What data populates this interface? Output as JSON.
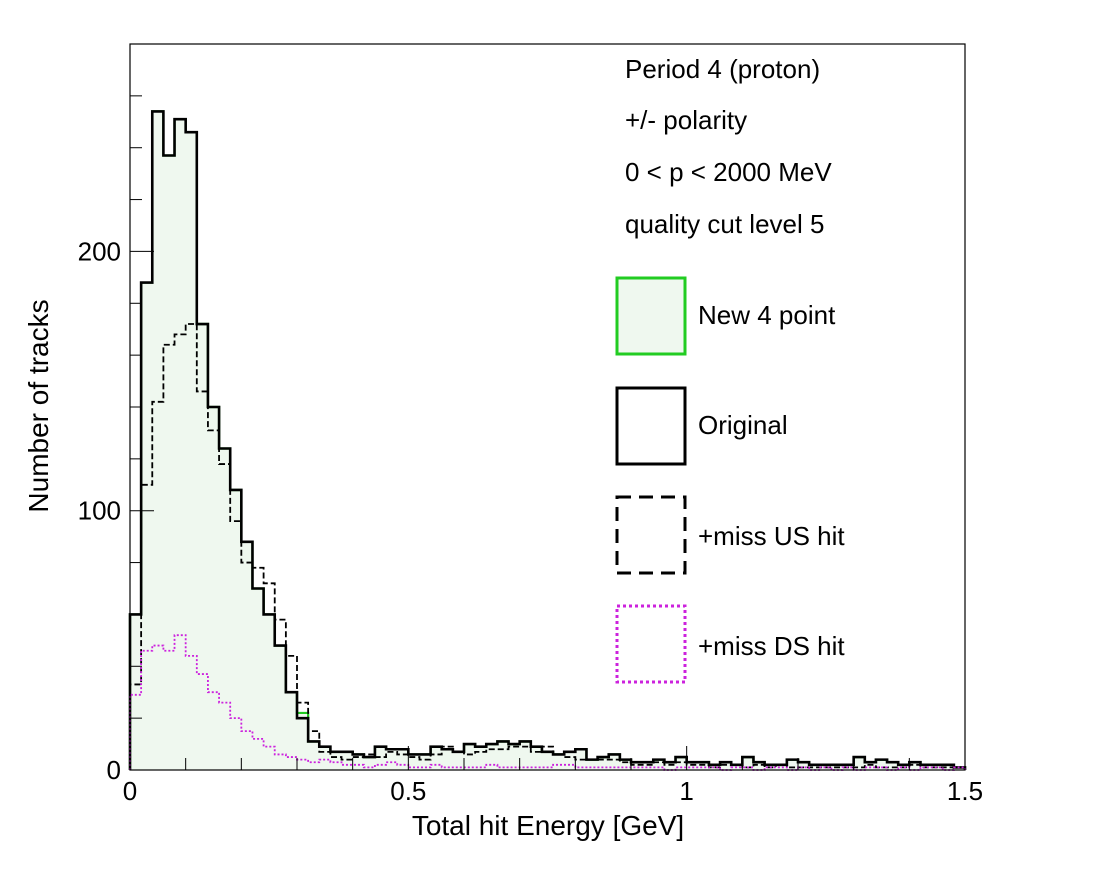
{
  "chart_data": {
    "type": "histogram",
    "xlabel": "Total hit Energy [GeV]",
    "ylabel": "Number of tracks",
    "xlim": [
      0,
      1.5
    ],
    "ylim": [
      0,
      280
    ],
    "x_ticks": [
      {
        "value": 0,
        "label": "0"
      },
      {
        "value": 0.5,
        "label": "0.5"
      },
      {
        "value": 1,
        "label": "1"
      },
      {
        "value": 1.5,
        "label": "1.5"
      }
    ],
    "y_ticks": [
      {
        "value": 0,
        "label": "0"
      },
      {
        "value": 100,
        "label": "100"
      },
      {
        "value": 200,
        "label": "200"
      }
    ],
    "grid": false,
    "legend_position": "right",
    "annotations": [
      "Period 4 (proton)",
      "+/- polarity",
      "0 < p < 2000 MeV",
      "quality cut level 5"
    ],
    "bin_edges": [
      0,
      0.02,
      0.04,
      0.06,
      0.08,
      0.1,
      0.12,
      0.14,
      0.16,
      0.18,
      0.2,
      0.22,
      0.24,
      0.26,
      0.28,
      0.3,
      0.32,
      0.34,
      0.36,
      0.38,
      0.4,
      0.42,
      0.44,
      0.46,
      0.48,
      0.5,
      0.52,
      0.54,
      0.56,
      0.58,
      0.6,
      0.62,
      0.64,
      0.66,
      0.68,
      0.7,
      0.72,
      0.74,
      0.76,
      0.78,
      0.8,
      0.82,
      0.84,
      0.86,
      0.88,
      0.9,
      0.92,
      0.94,
      0.96,
      0.98,
      1.0,
      1.02,
      1.04,
      1.06,
      1.08,
      1.1,
      1.12,
      1.14,
      1.16,
      1.18,
      1.2,
      1.22,
      1.24,
      1.26,
      1.28,
      1.3,
      1.32,
      1.34,
      1.36,
      1.38,
      1.4,
      1.42,
      1.44,
      1.46,
      1.48,
      1.5
    ],
    "series": [
      {
        "name": "New 4 point",
        "style": "filled",
        "color": "#22cc22",
        "fill": "#eff8ef",
        "values": [
          60,
          188,
          254,
          237,
          251,
          246,
          172,
          140,
          124,
          108,
          88,
          70,
          60,
          48,
          30,
          22,
          11,
          9,
          7,
          7,
          6,
          5,
          9,
          8,
          8,
          6,
          6,
          9,
          8,
          7,
          10,
          9,
          10,
          11,
          10,
          11,
          9,
          7,
          6,
          7,
          8,
          4,
          5,
          6,
          4,
          3,
          3,
          4,
          3,
          5,
          3,
          3,
          2,
          3,
          2,
          5,
          3,
          2,
          2,
          4,
          3,
          2,
          2,
          2,
          2,
          5,
          3,
          4,
          3,
          2,
          3,
          2,
          2,
          2,
          1
        ]
      },
      {
        "name": "Original",
        "style": "solid",
        "color": "#000000",
        "values": [
          60,
          188,
          254,
          237,
          251,
          246,
          172,
          140,
          124,
          108,
          88,
          70,
          60,
          48,
          30,
          20,
          11,
          9,
          7,
          7,
          6,
          5,
          9,
          8,
          8,
          6,
          6,
          9,
          8,
          7,
          10,
          9,
          10,
          11,
          10,
          11,
          9,
          7,
          6,
          7,
          8,
          4,
          5,
          6,
          4,
          3,
          3,
          4,
          3,
          5,
          3,
          3,
          2,
          3,
          2,
          5,
          3,
          2,
          2,
          4,
          3,
          2,
          2,
          2,
          2,
          5,
          3,
          4,
          3,
          2,
          3,
          2,
          2,
          2,
          1
        ]
      },
      {
        "name": "+miss US hit",
        "style": "dashed",
        "color": "#000000",
        "values": [
          33,
          110,
          142,
          164,
          168,
          172,
          146,
          131,
          118,
          96,
          80,
          78,
          72,
          58,
          44,
          26,
          15,
          7,
          5,
          4,
          5,
          6,
          5,
          7,
          6,
          5,
          4,
          6,
          9,
          7,
          6,
          7,
          8,
          8,
          9,
          9,
          7,
          9,
          6,
          5,
          4,
          4,
          4,
          4,
          3,
          2,
          2,
          3,
          2,
          3,
          2,
          2,
          1,
          2,
          2,
          1,
          2,
          1,
          2,
          1,
          1,
          1,
          1,
          1,
          1,
          1,
          2,
          1,
          1,
          1,
          2,
          1,
          1,
          1,
          1
        ]
      },
      {
        "name": "+miss DS hit",
        "style": "dotted",
        "color": "#cc22dd",
        "values": [
          29,
          46,
          48,
          46,
          52,
          44,
          37,
          30,
          26,
          20,
          15,
          12,
          9,
          6,
          5,
          4,
          3,
          4,
          3,
          2,
          2,
          1,
          2,
          3,
          2,
          1,
          1,
          2,
          1,
          1,
          1,
          1,
          2,
          1,
          1,
          1,
          1,
          1,
          2,
          2,
          1,
          1,
          1,
          1,
          1,
          1,
          1,
          1,
          0,
          1,
          1,
          1,
          1,
          0,
          1,
          1,
          0,
          1,
          1,
          0,
          1,
          0,
          1,
          0,
          1,
          0,
          1,
          1,
          0,
          1,
          0,
          1,
          1,
          0,
          1
        ]
      }
    ]
  }
}
